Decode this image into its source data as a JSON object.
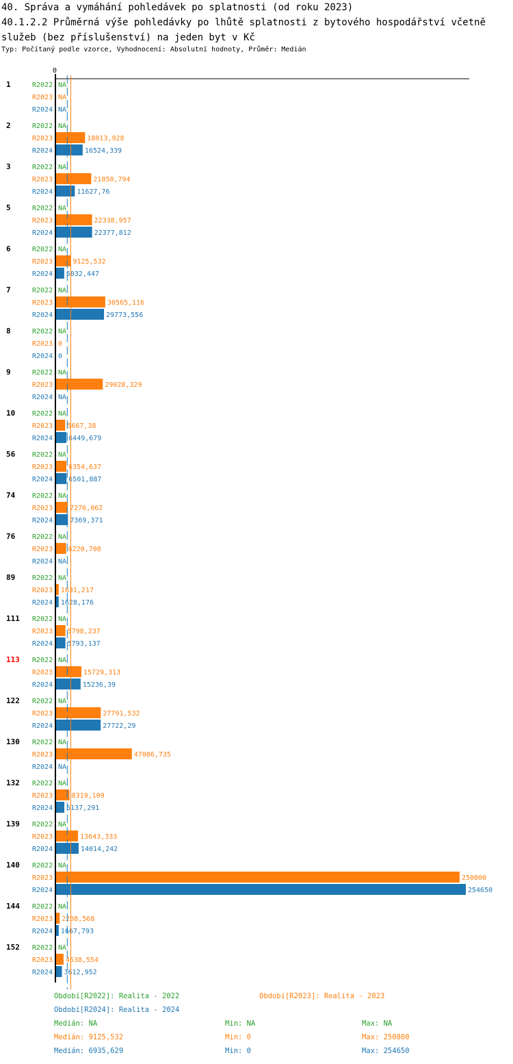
{
  "header": {
    "title": "40. Správa a vymáhání pohledávek po splatnosti (od roku 2023)",
    "subtitle": "40.1.2.2 Průměrná výše pohledávky po lhůtě splatnosti z bytového hospodářství včetně služeb (bez příslušenství) na jeden byt v Kč",
    "info": "Typ: Počítaný podle vzorce, Vyhodnocení: Absolutní hodnoty, Průměr: Medián"
  },
  "chart_data": {
    "type": "bar",
    "orientation": "horizontal",
    "axis_zero_label": "0",
    "xlim": [
      0,
      254650
    ],
    "colors": {
      "R2022": "#2ca02c",
      "R2023": "#ff7f0e",
      "R2024": "#1f77b4",
      "highlight": "#ff0000"
    },
    "series_names": [
      "R2022",
      "R2023",
      "R2024"
    ],
    "na_label": "NA",
    "categories": [
      "1",
      "2",
      "3",
      "5",
      "6",
      "7",
      "8",
      "9",
      "10",
      "56",
      "74",
      "76",
      "89",
      "111",
      "113",
      "122",
      "130",
      "132",
      "139",
      "140",
      "144",
      "152"
    ],
    "highlighted_category": "113",
    "series": [
      {
        "name": "R2022",
        "values": [
          null,
          null,
          null,
          null,
          null,
          null,
          null,
          null,
          null,
          null,
          null,
          null,
          null,
          null,
          null,
          null,
          null,
          null,
          null,
          null,
          null,
          null
        ],
        "labels": [
          "NA",
          "NA",
          "NA",
          "NA",
          "NA",
          "NA",
          "NA",
          "NA",
          "NA",
          "NA",
          "NA",
          "NA",
          "NA",
          "NA",
          "NA",
          "NA",
          "NA",
          "NA",
          "NA",
          "NA",
          "NA",
          "NA"
        ]
      },
      {
        "name": "R2023",
        "values": [
          null,
          18013.928,
          21850.794,
          22338.957,
          9125.532,
          30565.116,
          0,
          29028.329,
          5667.38,
          6354.637,
          7276.062,
          6220.708,
          1631.217,
          5798.237,
          15729.313,
          27791.532,
          47086.735,
          8319.109,
          13643.333,
          250800,
          2208.568,
          4638.554
        ],
        "labels": [
          "NA",
          "18013,928",
          "21850,794",
          "22338,957",
          "9125,532",
          "30565,116",
          "0",
          "29028,329",
          "5667,38",
          "6354,637",
          "7276,062",
          "6220,708",
          "1631,217",
          "5798,237",
          "15729,313",
          "27791,532",
          "47086,735",
          "8319,109",
          "13643,333",
          "250800",
          "2208,568",
          "4638,554"
        ]
      },
      {
        "name": "R2024",
        "values": [
          null,
          16524.339,
          11627.76,
          22377.812,
          5032.447,
          29773.556,
          0,
          null,
          6449.679,
          6501.887,
          7369.371,
          null,
          1628.176,
          5793.137,
          15236.39,
          27722.29,
          null,
          5137.291,
          14014.242,
          254650,
          1667.793,
          3612.952
        ],
        "labels": [
          "NA",
          "16524,339",
          "11627,76",
          "22377,812",
          "5032,447",
          "29773,556",
          "0",
          "NA",
          "6449,679",
          "6501,887",
          "7369,371",
          "NA",
          "1628,176",
          "5793,137",
          "15236,39",
          "27722,29",
          "NA",
          "5137,291",
          "14014,242",
          "254650",
          "1667,793",
          "3612,952"
        ]
      }
    ],
    "median_lines": {
      "R2023": 9125.532,
      "R2024": 6935.629
    },
    "legend": {
      "R2022": "Období[R2022]: Realita - 2022",
      "R2023": "Období[R2023]: Realita - 2023",
      "R2024": "Období[R2024]: Realita - 2024"
    },
    "stats": [
      {
        "series": "R2022",
        "median": "Medián: NA",
        "min": "Min: NA",
        "max": "Max: NA"
      },
      {
        "series": "R2023",
        "median": "Medián: 9125,532",
        "min": "Min: 0",
        "max": "Max: 250800"
      },
      {
        "series": "R2024",
        "median": "Medián: 6935,629",
        "min": "Min: 0",
        "max": "Max: 254650"
      }
    ]
  }
}
